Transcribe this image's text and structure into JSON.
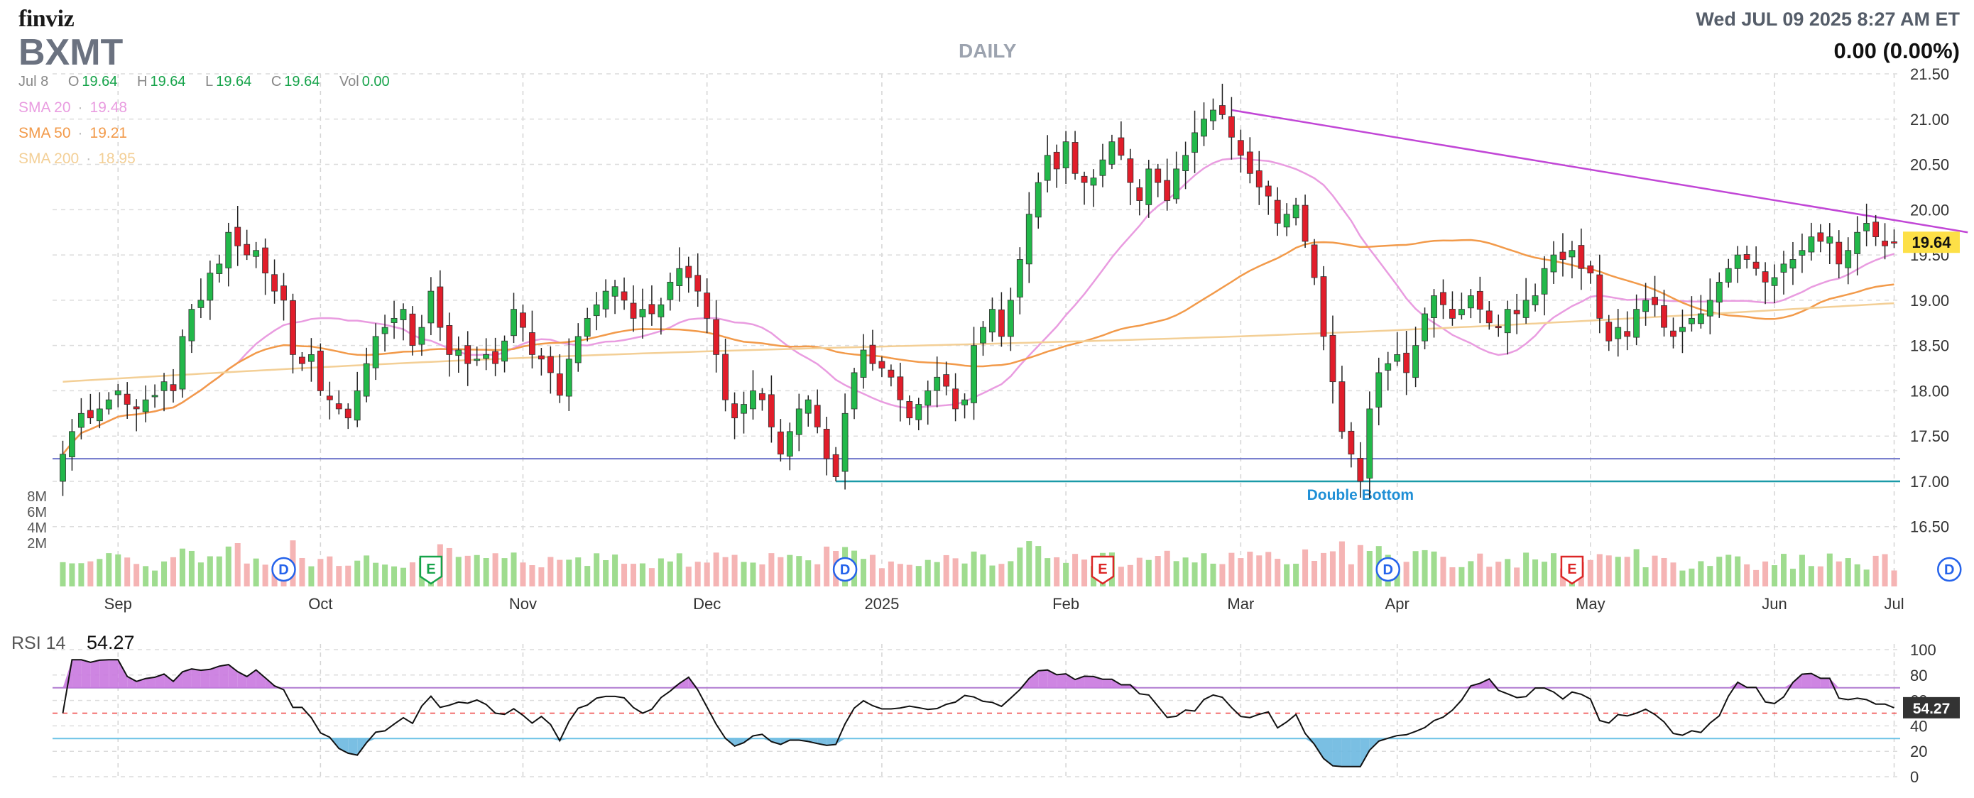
{
  "header": {
    "brand": "finviz",
    "ticker": "BXMT",
    "period": "DAILY",
    "datetime": "Wed JUL 09 2025 8:27 AM ET",
    "change": "0.00 (0.00%)"
  },
  "ohlc": {
    "date": "Jul 8",
    "open_label": "O",
    "open": "19.64",
    "high_label": "H",
    "high": "19.64",
    "low_label": "L",
    "low": "19.64",
    "close_label": "C",
    "close": "19.64",
    "vol_label": "Vol",
    "vol": "0.00"
  },
  "sma": [
    {
      "label": "SMA 20",
      "value": "19.48",
      "color": "#e99ce0"
    },
    {
      "label": "SMA 50",
      "value": "19.21",
      "color": "#f29a4a"
    },
    {
      "label": "SMA 200",
      "value": "18.95",
      "color": "#f7d8a8"
    }
  ],
  "colors": {
    "up": "#22b84a",
    "down": "#e11d2a",
    "vol_up": "#9fdc8f",
    "vol_down": "#f5b4b4",
    "trendline": "#c146d6",
    "support_line": "#6e74c9",
    "double_bottom_line": "#1b9aa8",
    "price_badge": "#fde047",
    "rsi_line": "#111111",
    "rsi_overbought_fill": "#c978df",
    "rsi_oversold_fill": "#6cb8e0",
    "earnings": "#dc2626",
    "dividend": "#2563eb",
    "earnings_green": "#16a34a"
  },
  "chart_data": {
    "type": "candlestick",
    "x_labels": [
      "Sep",
      "Oct",
      "Nov",
      "Dec",
      "2025",
      "Feb",
      "Mar",
      "Apr",
      "May",
      "Jun",
      "Jul"
    ],
    "y_ticks": [
      "21.50",
      "21.00",
      "20.50",
      "20.00",
      "19.50",
      "19.00",
      "18.50",
      "18.00",
      "17.50",
      "17.00",
      "16.50"
    ],
    "y_range": [
      16.2,
      21.5
    ],
    "last_price": "19.64",
    "volume_ticks": [
      "8M",
      "6M",
      "4M",
      "2M"
    ],
    "close_series": [
      17.3,
      17.55,
      17.75,
      17.7,
      17.8,
      17.9,
      18.0,
      17.85,
      17.8,
      17.9,
      17.95,
      18.1,
      18.0,
      18.6,
      18.9,
      19.0,
      19.3,
      19.4,
      19.75,
      19.6,
      19.5,
      19.55,
      19.3,
      19.1,
      19.0,
      18.4,
      18.3,
      18.4,
      18.0,
      17.9,
      17.8,
      17.7,
      18.0,
      18.3,
      18.6,
      18.7,
      18.8,
      18.9,
      18.5,
      18.7,
      19.1,
      18.7,
      18.4,
      18.45,
      18.3,
      18.35,
      18.4,
      18.3,
      18.55,
      18.9,
      18.7,
      18.4,
      18.35,
      18.2,
      17.95,
      18.35,
      18.6,
      18.8,
      18.95,
      19.1,
      19.15,
      19.0,
      18.8,
      18.9,
      18.85,
      18.95,
      19.2,
      19.35,
      19.25,
      19.1,
      18.8,
      18.4,
      17.9,
      17.7,
      17.85,
      18.0,
      17.9,
      17.6,
      17.3,
      17.55,
      17.8,
      17.9,
      17.6,
      17.25,
      17.05,
      17.75,
      18.2,
      18.45,
      18.3,
      18.25,
      18.15,
      17.9,
      17.7,
      17.85,
      18.0,
      18.15,
      18.05,
      17.8,
      17.9,
      18.5,
      18.7,
      18.9,
      18.6,
      19.0,
      19.45,
      19.95,
      20.3,
      20.6,
      20.45,
      20.75,
      20.4,
      20.3,
      20.35,
      20.55,
      20.75,
      20.6,
      20.3,
      20.1,
      20.45,
      20.3,
      20.1,
      20.45,
      20.6,
      20.85,
      21.0,
      21.1,
      21.05,
      20.8,
      20.6,
      20.4,
      20.25,
      20.15,
      19.85,
      19.95,
      20.05,
      19.65,
      19.25,
      18.6,
      18.1,
      17.55,
      17.3,
      17.0,
      17.8,
      18.2,
      18.3,
      18.4,
      18.2,
      18.5,
      18.85,
      19.05,
      18.95,
      18.8,
      18.9,
      19.05,
      18.9,
      18.75,
      18.7,
      18.9,
      18.85,
      19.0,
      19.05,
      19.35,
      19.5,
      19.45,
      19.55,
      19.35,
      19.3,
      18.8,
      18.55,
      18.7,
      18.6,
      18.9,
      19.0,
      18.95,
      18.7,
      18.6,
      18.7,
      18.8,
      18.85,
      19.0,
      19.2,
      19.35,
      19.5,
      19.45,
      19.35,
      19.2,
      19.25,
      19.4,
      19.45,
      19.55,
      19.7,
      19.65,
      19.7,
      19.4,
      19.55,
      19.75,
      19.85,
      19.7,
      19.6,
      19.64
    ],
    "annotations": {
      "double_bottom": "Double Bottom"
    },
    "events": [
      {
        "type": "dividend",
        "label": "D",
        "index": 24
      },
      {
        "type": "earnings",
        "label": "E",
        "index": 40
      },
      {
        "type": "dividend",
        "label": "D",
        "index": 85
      },
      {
        "type": "earnings",
        "label": "E",
        "index": 113
      },
      {
        "type": "dividend",
        "label": "D",
        "index": 144
      },
      {
        "type": "earnings",
        "label": "E",
        "index": 164
      },
      {
        "type": "dividend",
        "label": "D",
        "index": 205
      }
    ],
    "rsi": {
      "label": "RSI 14",
      "value": "54.27",
      "y_ticks": [
        "100",
        "80",
        "60",
        "40",
        "20",
        "0"
      ],
      "overbought": 70,
      "oversold": 30,
      "midline": 50
    }
  }
}
